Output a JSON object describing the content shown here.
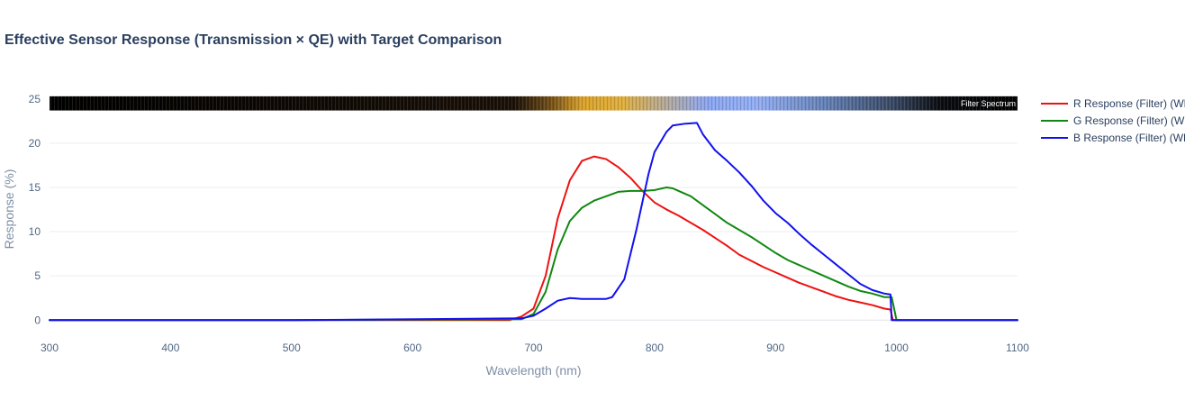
{
  "chart_data": {
    "type": "line",
    "title": "Effective Sensor Response (Transmission × QE) with Target Comparison",
    "xlabel": "Wavelength (nm)",
    "ylabel": "Response (%)",
    "xlim": [
      300,
      1100
    ],
    "ylim": [
      -1.5,
      26
    ],
    "x_ticks": [
      300,
      400,
      500,
      600,
      700,
      800,
      900,
      1000,
      1100
    ],
    "y_ticks": [
      0,
      5,
      10,
      15,
      20,
      25
    ],
    "grid": true,
    "legend_position": "right",
    "spectrum_band": {
      "label": "Filter Spectrum",
      "y_range": [
        23.7,
        25.3
      ]
    },
    "series": [
      {
        "name": "R Response (Filter) (WB",
        "color": "#ee1111",
        "x": [
          300,
          500,
          680,
          690,
          700,
          710,
          720,
          730,
          740,
          750,
          760,
          770,
          780,
          790,
          800,
          810,
          820,
          830,
          840,
          850,
          860,
          870,
          880,
          890,
          900,
          910,
          920,
          930,
          940,
          950,
          960,
          970,
          980,
          990,
          995,
          997,
          1000,
          1100
        ],
        "y": [
          0,
          0,
          0,
          0.4,
          1.3,
          5.0,
          11.5,
          15.8,
          18.0,
          18.5,
          18.2,
          17.3,
          16.1,
          14.6,
          13.3,
          12.5,
          11.8,
          11.0,
          10.2,
          9.3,
          8.4,
          7.4,
          6.7,
          6.0,
          5.4,
          4.8,
          4.2,
          3.7,
          3.2,
          2.7,
          2.3,
          2.0,
          1.7,
          1.3,
          1.2,
          0,
          0,
          0
        ]
      },
      {
        "name": "G Response (Filter) (WB",
        "color": "#118811",
        "x": [
          300,
          500,
          690,
          700,
          710,
          720,
          730,
          740,
          750,
          760,
          770,
          780,
          790,
          800,
          810,
          815,
          820,
          830,
          840,
          850,
          860,
          870,
          880,
          890,
          900,
          910,
          920,
          930,
          940,
          950,
          960,
          970,
          980,
          990,
          996,
          1000,
          1100
        ],
        "y": [
          0,
          0,
          0.1,
          0.7,
          3.2,
          8.0,
          11.2,
          12.7,
          13.5,
          14.0,
          14.5,
          14.6,
          14.6,
          14.7,
          15.0,
          14.9,
          14.6,
          14.0,
          13.0,
          12.0,
          11.0,
          10.2,
          9.4,
          8.5,
          7.6,
          6.8,
          6.2,
          5.6,
          5.0,
          4.4,
          3.8,
          3.3,
          3.0,
          2.6,
          2.6,
          0,
          0
        ]
      },
      {
        "name": "B Response (Filter) (WB",
        "color": "#1111ee",
        "x": [
          300,
          500,
          690,
          700,
          710,
          720,
          730,
          740,
          750,
          760,
          765,
          775,
          785,
          795,
          800,
          810,
          815,
          825,
          835,
          840,
          850,
          860,
          870,
          880,
          890,
          900,
          910,
          920,
          930,
          940,
          950,
          960,
          970,
          980,
          990,
          995,
          996,
          1000,
          1100
        ],
        "y": [
          0,
          0,
          0.2,
          0.5,
          1.3,
          2.2,
          2.5,
          2.4,
          2.4,
          2.4,
          2.6,
          4.6,
          10.2,
          16.5,
          19.0,
          21.3,
          22.0,
          22.2,
          22.3,
          21.0,
          19.2,
          18.0,
          16.7,
          15.2,
          13.5,
          12.1,
          11.0,
          9.7,
          8.5,
          7.4,
          6.3,
          5.2,
          4.1,
          3.4,
          3.0,
          2.9,
          0,
          0,
          0
        ]
      }
    ]
  }
}
